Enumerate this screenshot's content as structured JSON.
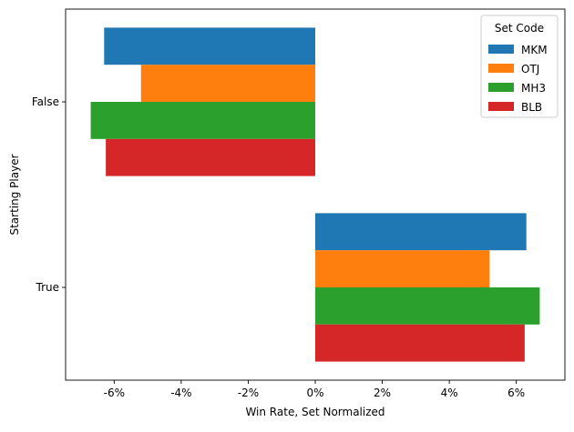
{
  "chart_data": {
    "type": "bar",
    "orientation": "horizontal",
    "categories": [
      "False",
      "True"
    ],
    "series": [
      {
        "name": "MKM",
        "values": [
          -6.3,
          6.3
        ]
      },
      {
        "name": "OTJ",
        "values": [
          -5.2,
          5.2
        ]
      },
      {
        "name": "MH3",
        "values": [
          -6.7,
          6.7
        ]
      },
      {
        "name": "BLB",
        "values": [
          -6.25,
          6.25
        ]
      }
    ],
    "xlabel": "Win Rate, Set Normalized",
    "ylabel": "Starting Player",
    "xlim": [
      -7.45,
      7.45
    ],
    "xticks": [
      -6,
      -4,
      -2,
      0,
      2,
      4,
      6
    ],
    "xtick_labels": [
      "-6%",
      "-4%",
      "-2%",
      "0%",
      "2%",
      "4%",
      "6%"
    ],
    "legend": {
      "title": "Set Code",
      "position": "top-right"
    },
    "colors": [
      "#1f77b4",
      "#ff7f0e",
      "#2ca02c",
      "#d62728"
    ],
    "grid": false
  }
}
